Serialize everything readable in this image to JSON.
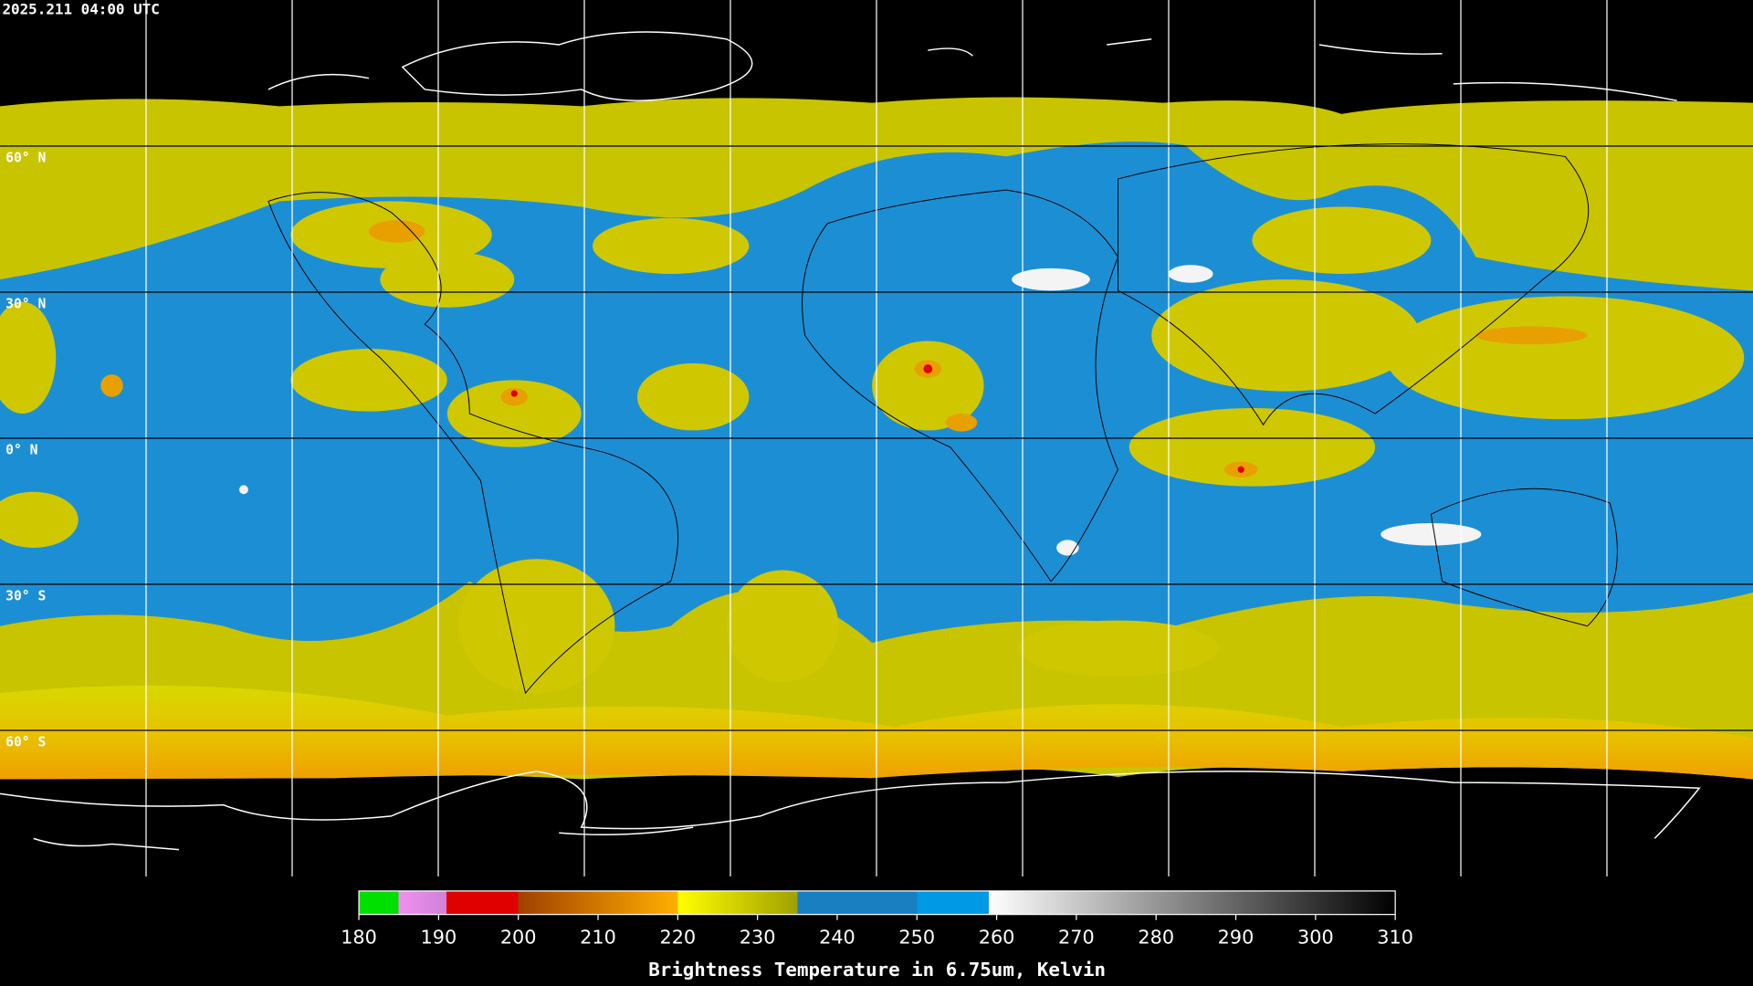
{
  "header": {
    "title": "2025.211 04:00 UTC"
  },
  "map": {
    "lat_lines": [
      {
        "value": 60,
        "label": "60° N"
      },
      {
        "value": 30,
        "label": "30° N"
      },
      {
        "value": 0,
        "label": "0° N"
      },
      {
        "value": -30,
        "label": "30° S"
      },
      {
        "value": -60,
        "label": "60° S"
      }
    ]
  },
  "colorbar": {
    "title": "Brightness Temperature in 6.75um, Kelvin",
    "range": [
      180,
      310
    ],
    "ticks": [
      180,
      190,
      200,
      210,
      220,
      230,
      240,
      250,
      260,
      270,
      280,
      290,
      300,
      310
    ],
    "stops": [
      {
        "value": 180,
        "color": "#00e000"
      },
      {
        "value": 185,
        "color": "#00e000"
      },
      {
        "value": 185,
        "color": "#f090f0"
      },
      {
        "value": 191,
        "color": "#d080d8"
      },
      {
        "value": 191,
        "color": "#e00000"
      },
      {
        "value": 200,
        "color": "#e00000"
      },
      {
        "value": 200,
        "color": "#a04000"
      },
      {
        "value": 220,
        "color": "#ffb000"
      },
      {
        "value": 220,
        "color": "#ffff00"
      },
      {
        "value": 235,
        "color": "#a0a000"
      },
      {
        "value": 235,
        "color": "#1a7fc0"
      },
      {
        "value": 250,
        "color": "#1a7fc0"
      },
      {
        "value": 250,
        "color": "#0099e6"
      },
      {
        "value": 259,
        "color": "#0099e6"
      },
      {
        "value": 259,
        "color": "#ffffff"
      },
      {
        "value": 310,
        "color": "#000000"
      }
    ]
  }
}
